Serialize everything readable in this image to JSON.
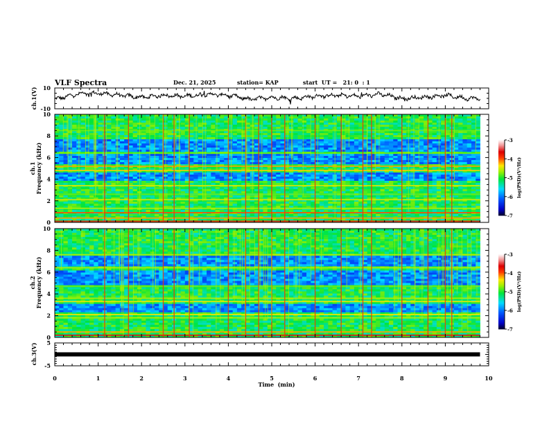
{
  "header": {
    "title": "VLF Spectra",
    "date": "Dec. 21, 2025",
    "station": "station= KAP",
    "start": "start  UT =   21: 0  : 1"
  },
  "chart_data": [
    {
      "type": "line",
      "name": "ch1-voltage",
      "ylabel": "ch.1(V)",
      "ylim": [
        -10,
        10
      ],
      "ytick_labels": [
        "10",
        "-10"
      ],
      "xlim": [
        0,
        10
      ],
      "data_end_min": 9.8,
      "description_trace": "noisy waveform oscillating roughly between -6 and 6 V",
      "trend_x": [
        0,
        0.5,
        1.0,
        1.5,
        2.0,
        2.5,
        3.0,
        3.5,
        4.0,
        4.5,
        5.0,
        5.5,
        6.0,
        6.5,
        7.0,
        7.5,
        8.0,
        8.5,
        9.0,
        9.5,
        9.8
      ],
      "trend_y": [
        -1,
        4,
        5,
        3,
        1,
        3,
        2,
        4,
        3,
        -1,
        1,
        0,
        2,
        3,
        2,
        4,
        0,
        1,
        3,
        0,
        0
      ]
    },
    {
      "type": "heatmap",
      "name": "ch1-spectrogram",
      "ylabel_top": "ch.1",
      "ylabel": "Frequency (kHz)",
      "ylim": [
        0,
        10
      ],
      "yticks": [
        "0",
        "2",
        "4",
        "6",
        "8",
        "10"
      ],
      "xlim": [
        0,
        10
      ],
      "colorbar": {
        "label": "log(PSD)(V²/Hz)",
        "ticks": [
          "-3",
          "-4",
          "-5",
          "-6",
          "-7"
        ],
        "range": [
          -7,
          -3
        ]
      },
      "bands_khz": [
        {
          "f": 0.1,
          "level": -3.8
        },
        {
          "f": 0.4,
          "level": -4.2
        },
        {
          "f": 0.9,
          "level": -4.0
        },
        {
          "f": 1.3,
          "level": -4.6
        },
        {
          "f": 2.1,
          "level": -4.5
        },
        {
          "f": 2.6,
          "level": -4.8
        },
        {
          "f": 3.4,
          "level": -4.5
        },
        {
          "f": 4.8,
          "level": -4.3
        },
        {
          "f": 5.2,
          "level": -4.2
        },
        {
          "f": 6.4,
          "level": -4.8
        },
        {
          "f": 8.5,
          "level": -4.8
        }
      ],
      "blue_bands_khz": [
        [
          3.9,
          4.7
        ],
        [
          5.4,
          6.3
        ],
        [
          6.6,
          7.6
        ]
      ],
      "sferic_times_min": [
        1.15,
        1.7,
        2.5,
        2.75,
        3.1,
        4.0,
        4.4,
        4.7,
        5.0,
        5.3,
        6.0,
        6.6,
        7.1,
        7.3,
        8.0,
        8.6,
        9.0,
        9.15
      ]
    },
    {
      "type": "heatmap",
      "name": "ch2-spectrogram",
      "ylabel_top": "ch.2",
      "ylabel": "Frequency (kHz)",
      "ylim": [
        0,
        10
      ],
      "yticks": [
        "0",
        "2",
        "4",
        "6",
        "8",
        "10"
      ],
      "xlim": [
        0,
        10
      ],
      "colorbar": {
        "label": "log(PSD)(V²/Hz)",
        "ticks": [
          "-3",
          "-4",
          "-5",
          "-6",
          "-7"
        ],
        "range": [
          -7,
          -3
        ]
      },
      "bands_khz": [
        {
          "f": 0.2,
          "level": -3.6
        },
        {
          "f": 0.5,
          "level": -4.2
        },
        {
          "f": 1.8,
          "level": -4.6
        },
        {
          "f": 2.1,
          "level": -4.4
        },
        {
          "f": 3.3,
          "level": -4.4
        },
        {
          "f": 3.6,
          "level": -4.6
        },
        {
          "f": 4.7,
          "level": -4.8
        },
        {
          "f": 6.4,
          "level": -4.6
        },
        {
          "f": 7.6,
          "level": -4.6
        }
      ],
      "blue_bands_khz": [
        [
          4.9,
          6.2
        ],
        [
          6.6,
          7.5
        ],
        [
          2.4,
          3.1
        ]
      ],
      "sferic_times_min": [
        1.15,
        1.7,
        2.5,
        2.75,
        3.1,
        4.0,
        4.4,
        4.7,
        5.0,
        5.3,
        6.0,
        6.6,
        7.1,
        7.3,
        8.0,
        8.6,
        9.0,
        9.15
      ]
    },
    {
      "type": "line",
      "name": "ch3-voltage",
      "ylabel": "ch.3(V)",
      "ylim": [
        -5,
        5
      ],
      "ytick_labels": [
        "5",
        "-5"
      ],
      "xlim": [
        0,
        10
      ],
      "x": [
        0,
        9.8
      ],
      "y": [
        0,
        0
      ]
    }
  ],
  "xaxis": {
    "label": "Time  (min)",
    "ticks": [
      "0",
      "1",
      "2",
      "3",
      "4",
      "5",
      "6",
      "7",
      "8",
      "9",
      "10"
    ]
  }
}
